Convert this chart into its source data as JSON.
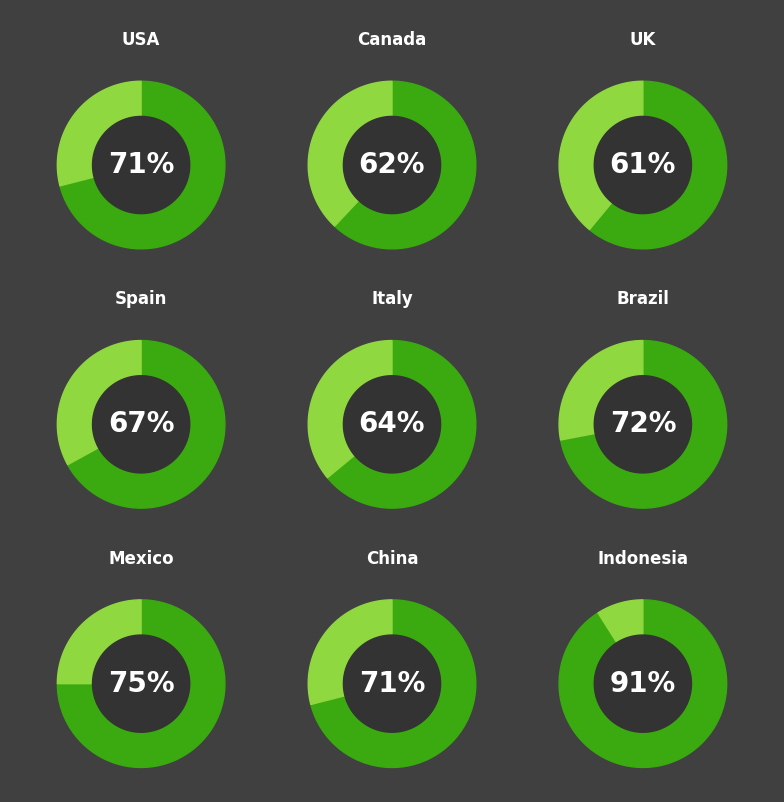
{
  "background_color": "#404040",
  "charts": [
    {
      "label": "USA",
      "value": 71
    },
    {
      "label": "Canada",
      "value": 62
    },
    {
      "label": "UK",
      "value": 61
    },
    {
      "label": "Spain",
      "value": 67
    },
    {
      "label": "Italy",
      "value": 64
    },
    {
      "label": "Brazil",
      "value": 72
    },
    {
      "label": "Mexico",
      "value": 75
    },
    {
      "label": "China",
      "value": 71
    },
    {
      "label": "Indonesia",
      "value": 91
    }
  ],
  "color_dark_green": "#3aaa10",
  "color_light_green": "#90d840",
  "color_center": "#333333",
  "title_color": "#ffffff",
  "pct_color": "#ffffff",
  "title_fontsize": 12,
  "pct_fontsize": 20,
  "grid_rows": 3,
  "grid_cols": 3
}
